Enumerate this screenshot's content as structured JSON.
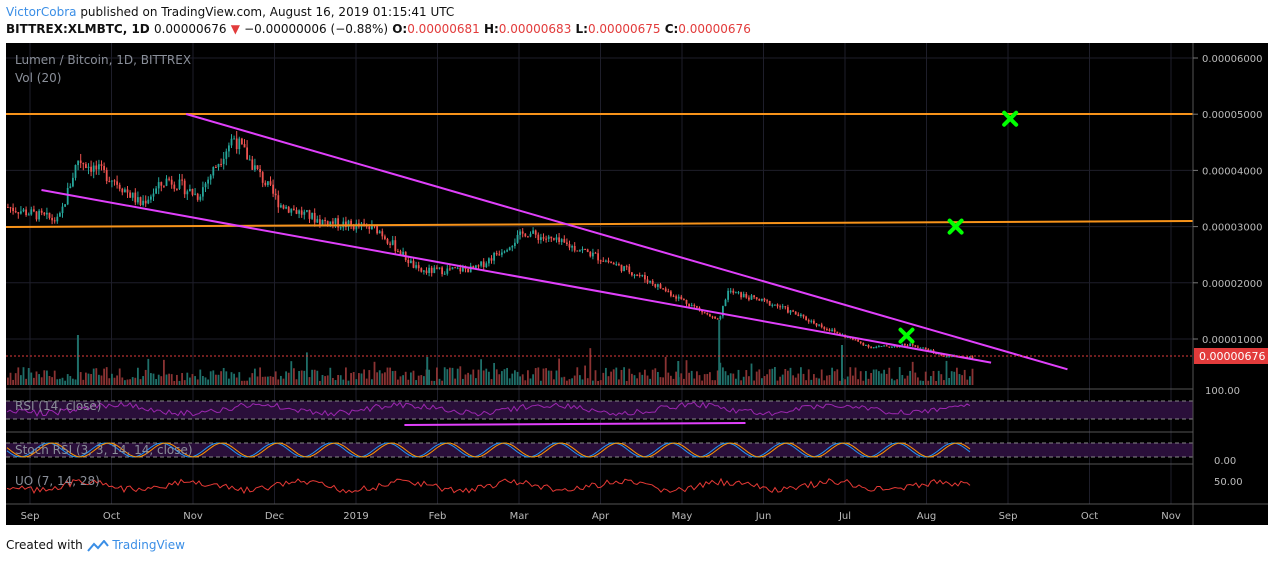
{
  "header": {
    "author": "VictorCobra",
    "published_text": "published on TradingView.com, August 16, 2019 01:15:41 UTC",
    "symbol": "BITTREX:XLMBTC, 1D",
    "last_price": "0.00000676",
    "change_arrow": "▼",
    "change": "−0.00000006 (−0.88%)",
    "o_label": "O:",
    "o_value": "0.00000681",
    "h_label": "H:",
    "h_value": "0.00000683",
    "l_label": "L:",
    "l_value": "0.00000675",
    "c_label": "C:",
    "c_value": "0.00000676"
  },
  "legend": {
    "pair_title": "Lumen / Bitcoin, 1D, BITTREX",
    "vol": "Vol (20)",
    "rsi": "RSI (14, close)",
    "stoch": "Stoch RSI (3, 3, 14, 14, close)",
    "uo": "UO (7, 14, 28)"
  },
  "price_axis": {
    "ticks": [
      "0.00006000",
      "0.00005000",
      "0.00004000",
      "0.00003000",
      "0.00002000",
      "0.00001000"
    ],
    "tick_values": [
      6e-05,
      5e-05,
      4e-05,
      3e-05,
      2e-05,
      1e-05
    ],
    "last_label": "0.00000676"
  },
  "indicator_axis": {
    "rsi_tick": "100.00",
    "stoch_tick": "0.00",
    "uo_tick": "50.00"
  },
  "time_axis": {
    "labels": [
      "Sep",
      "Oct",
      "Nov",
      "Dec",
      "2019",
      "Feb",
      "Mar",
      "Apr",
      "May",
      "Jun",
      "Jul",
      "Aug",
      "Sep",
      "Oct",
      "Nov"
    ]
  },
  "colors": {
    "background": "#000000",
    "up": "#26a69a",
    "down": "#ef5350",
    "horizontal_level": "#f7931a",
    "trendline": "#e040fb",
    "marker": "#00ff00",
    "last_price_tag": "#e23b3b"
  },
  "chart_data": {
    "type": "candlestick",
    "title": "Lumen / Bitcoin, 1D, BITTREX",
    "x_range": [
      "2018-08-27",
      "2019-11-05"
    ],
    "y_range": [
      3.3e-06,
      6.4e-06
    ],
    "horizontal_levels": [
      5e-05,
      3.06e-05
    ],
    "trendlines": [
      {
        "from": [
          "2018-11-01",
          5e-05
        ],
        "to": [
          "2019-09-20",
          6.3e-06
        ]
      },
      {
        "from": [
          "2018-09-09",
          3.57e-05
        ],
        "to": [
          "2019-08-23",
          7.2e-06
        ]
      },
      {
        "from": [
          "2019-01-20",
          "RSI"
        ],
        "to": [
          "2019-05-25",
          "RSI"
        ]
      }
    ],
    "markers": [
      {
        "date": "2019-07-23",
        "value": 1.06e-05
      },
      {
        "date": "2019-08-10",
        "value": 3e-05
      },
      {
        "date": "2019-08-30",
        "value": 4.92e-05
      }
    ],
    "approx_close": [
      {
        "date": "2018-08-27",
        "value": 3.35e-05
      },
      {
        "date": "2018-09-15",
        "value": 3.1e-05
      },
      {
        "date": "2018-09-22",
        "value": 4.2e-05
      },
      {
        "date": "2018-10-05",
        "value": 3.85e-05
      },
      {
        "date": "2018-10-15",
        "value": 3.4e-05
      },
      {
        "date": "2018-10-25",
        "value": 3.85e-05
      },
      {
        "date": "2018-11-05",
        "value": 3.55e-05
      },
      {
        "date": "2018-11-18",
        "value": 4.6e-05
      },
      {
        "date": "2018-12-05",
        "value": 3.4e-05
      },
      {
        "date": "2018-12-20",
        "value": 3.1e-05
      },
      {
        "date": "2019-01-10",
        "value": 2.95e-05
      },
      {
        "date": "2019-01-25",
        "value": 2.2e-05
      },
      {
        "date": "2019-02-15",
        "value": 2.25e-05
      },
      {
        "date": "2019-03-05",
        "value": 2.9e-05
      },
      {
        "date": "2019-03-25",
        "value": 2.6e-05
      },
      {
        "date": "2019-04-15",
        "value": 2.15e-05
      },
      {
        "date": "2019-05-05",
        "value": 1.6e-05
      },
      {
        "date": "2019-05-15",
        "value": 1.3e-05
      },
      {
        "date": "2019-05-18",
        "value": 1.85e-05
      },
      {
        "date": "2019-06-05",
        "value": 1.6e-05
      },
      {
        "date": "2019-06-25",
        "value": 1.15e-05
      },
      {
        "date": "2019-07-10",
        "value": 8.5e-06
      },
      {
        "date": "2019-07-25",
        "value": 9e-06
      },
      {
        "date": "2019-08-05",
        "value": 7e-06
      },
      {
        "date": "2019-08-15",
        "value": 6.8e-06
      }
    ]
  }
}
